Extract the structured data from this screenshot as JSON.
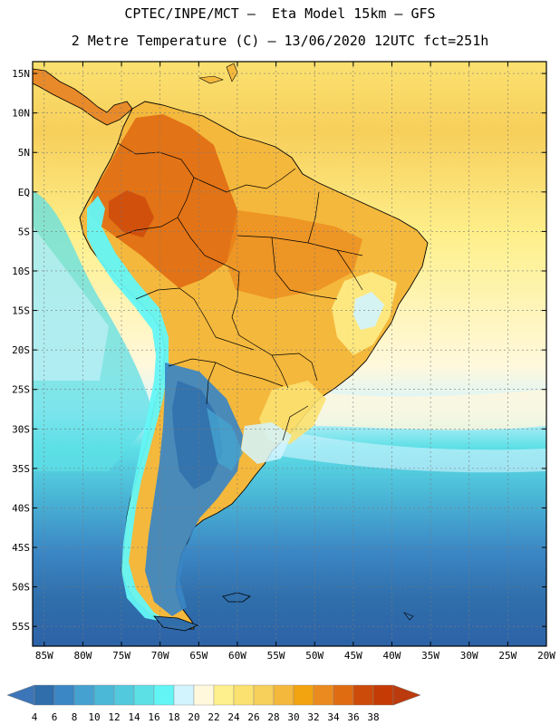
{
  "header": {
    "line1": "CPTEC/INPE/MCT –  Eta Model 15km – GFS",
    "line2": "2 Metre Temperature (C) – 13/06/2020 12UTC fct=251h"
  },
  "map": {
    "lat_labels": [
      "15N",
      "10N",
      "5N",
      "EQ",
      "5S",
      "10S",
      "15S",
      "20S",
      "25S",
      "30S",
      "35S",
      "40S",
      "45S",
      "50S",
      "55S"
    ],
    "lon_labels": [
      "85W",
      "80W",
      "75W",
      "70W",
      "65W",
      "60W",
      "55W",
      "50W",
      "45W",
      "40W",
      "35W",
      "30W",
      "25W",
      "20W"
    ],
    "lat_range": [
      -57.5,
      16.5
    ],
    "lon_range": [
      -86.5,
      -20
    ]
  },
  "colorbar": {
    "labels": [
      "4",
      "6",
      "8",
      "10",
      "12",
      "14",
      "16",
      "18",
      "20",
      "22",
      "24",
      "26",
      "28",
      "30",
      "32",
      "34",
      "36",
      "38"
    ],
    "colors": [
      "#3c76b8",
      "#2f6eab",
      "#3b86c4",
      "#45a2d0",
      "#4bb8d7",
      "#53c9dd",
      "#5ddfe6",
      "#63f5f5",
      "#d2f4ff",
      "#fff8dc",
      "#fef08c",
      "#fbe170",
      "#f7cf5b",
      "#f4b83c",
      "#f2a410",
      "#eb8a1e",
      "#e06c12",
      "#cc4a0a",
      "#c43b05",
      "#bb3a0e"
    ],
    "units": "C"
  }
}
